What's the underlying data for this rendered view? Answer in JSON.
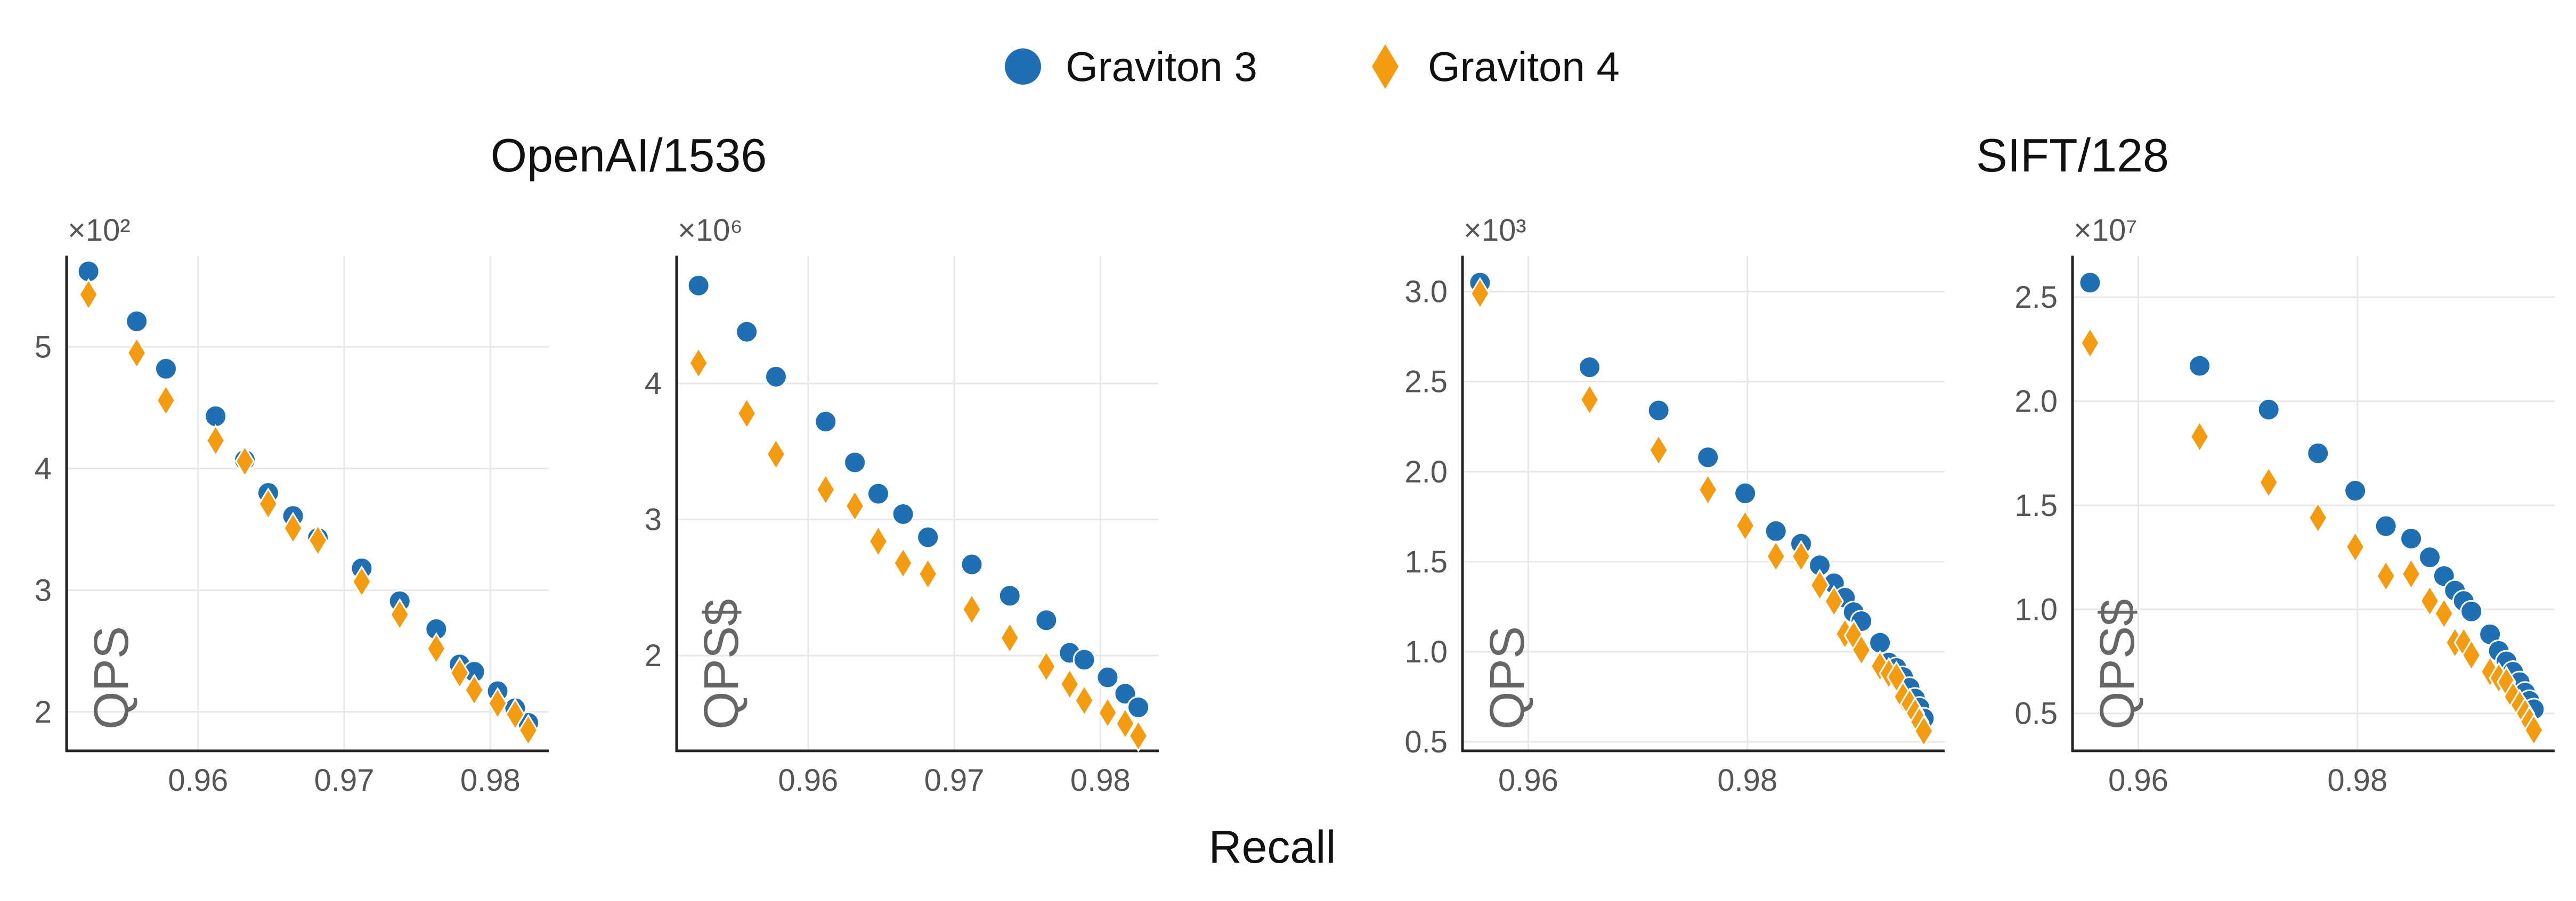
{
  "colors": {
    "graviton3": "#1f6fb2",
    "graviton4": "#f39c12",
    "grid": "#e8e8e8",
    "axis": "#222222"
  },
  "legend": {
    "position": "top-center",
    "items": [
      {
        "label": "Graviton 3",
        "marker": "circle",
        "color": "#1f6fb2"
      },
      {
        "label": "Graviton 4",
        "marker": "diamond",
        "color": "#f39c12"
      }
    ]
  },
  "group_titles": [
    "OpenAI/1536",
    "SIFT/128"
  ],
  "xlabel": "Recall",
  "chart_data": [
    {
      "type": "scatter",
      "group": "OpenAI/1536",
      "ylabel": "QPS",
      "multiplier": "×10²",
      "xlim": [
        0.951,
        0.984
      ],
      "ylim": [
        1.68,
        5.75
      ],
      "xticks": [
        0.96,
        0.97,
        0.98
      ],
      "xtick_labels": [
        "0.96",
        "0.97",
        "0.98"
      ],
      "yticks": [
        2,
        3,
        4,
        5
      ],
      "ytick_labels": [
        "2",
        "3",
        "4",
        "5"
      ],
      "grid": true,
      "series": [
        {
          "name": "Graviton 3",
          "marker": "circle",
          "x": [
            0.9525,
            0.9558,
            0.9578,
            0.9612,
            0.9632,
            0.9648,
            0.9665,
            0.9682,
            0.9712,
            0.9738,
            0.9763,
            0.9779,
            0.9789,
            0.9805,
            0.9817,
            0.9826
          ],
          "y": [
            5.62,
            5.21,
            4.82,
            4.43,
            4.07,
            3.8,
            3.61,
            3.43,
            3.18,
            2.91,
            2.68,
            2.39,
            2.33,
            2.17,
            2.03,
            1.91
          ]
        },
        {
          "name": "Graviton 4",
          "marker": "diamond",
          "x": [
            0.9525,
            0.9558,
            0.9578,
            0.9612,
            0.9632,
            0.9648,
            0.9665,
            0.9682,
            0.9712,
            0.9738,
            0.9763,
            0.9779,
            0.9789,
            0.9805,
            0.9817,
            0.9826
          ],
          "y": [
            5.43,
            4.95,
            4.56,
            4.23,
            4.06,
            3.71,
            3.51,
            3.41,
            3.07,
            2.8,
            2.52,
            2.32,
            2.18,
            2.07,
            1.98,
            1.85
          ]
        }
      ]
    },
    {
      "type": "scatter",
      "group": "OpenAI/1536",
      "ylabel": "QPS$",
      "multiplier": "×10⁶",
      "xlim": [
        0.951,
        0.984
      ],
      "ylim": [
        1.3,
        4.94
      ],
      "xticks": [
        0.96,
        0.97,
        0.98
      ],
      "xtick_labels": [
        "0.96",
        "0.97",
        "0.98"
      ],
      "yticks": [
        2,
        3,
        4
      ],
      "ytick_labels": [
        "2",
        "3",
        "4"
      ],
      "grid": true,
      "series": [
        {
          "name": "Graviton 3",
          "marker": "circle",
          "x": [
            0.9525,
            0.9558,
            0.9578,
            0.9612,
            0.9632,
            0.9648,
            0.9665,
            0.9682,
            0.9712,
            0.9738,
            0.9763,
            0.9779,
            0.9789,
            0.9805,
            0.9817,
            0.9826
          ],
          "y": [
            4.72,
            4.38,
            4.05,
            3.72,
            3.42,
            3.19,
            3.04,
            2.87,
            2.67,
            2.44,
            2.26,
            2.02,
            1.97,
            1.84,
            1.72,
            1.62
          ]
        },
        {
          "name": "Graviton 4",
          "marker": "diamond",
          "x": [
            0.9525,
            0.9558,
            0.9578,
            0.9612,
            0.9632,
            0.9648,
            0.9665,
            0.9682,
            0.9712,
            0.9738,
            0.9763,
            0.9779,
            0.9789,
            0.9805,
            0.9817,
            0.9826
          ],
          "y": [
            4.15,
            3.78,
            3.48,
            3.22,
            3.1,
            2.84,
            2.68,
            2.6,
            2.34,
            2.13,
            1.92,
            1.79,
            1.67,
            1.58,
            1.5,
            1.41
          ]
        }
      ]
    },
    {
      "type": "scatter",
      "group": "SIFT/128",
      "ylabel": "QPS",
      "multiplier": "×10³",
      "xlim": [
        0.954,
        0.998
      ],
      "ylim": [
        0.45,
        3.2
      ],
      "xticks": [
        0.96,
        0.98
      ],
      "xtick_labels": [
        "0.96",
        "0.98"
      ],
      "yticks": [
        0.5,
        1.0,
        1.5,
        2.0,
        2.5,
        3.0
      ],
      "ytick_labels": [
        "0.5",
        "1.0",
        "1.5",
        "2.0",
        "2.5",
        "3.0"
      ],
      "grid": true,
      "series": [
        {
          "name": "Graviton 3",
          "marker": "circle",
          "x": [
            0.9556,
            0.9656,
            0.9719,
            0.9764,
            0.9798,
            0.9826,
            0.9849,
            0.9866,
            0.9879,
            0.9889,
            0.9897,
            0.9904,
            0.9921,
            0.9929,
            0.9936,
            0.9942,
            0.9948,
            0.9953,
            0.9957,
            0.9961
          ],
          "y": [
            3.05,
            2.58,
            2.34,
            2.08,
            1.88,
            1.67,
            1.6,
            1.48,
            1.38,
            1.3,
            1.22,
            1.17,
            1.05,
            0.94,
            0.91,
            0.86,
            0.8,
            0.74,
            0.69,
            0.63
          ]
        },
        {
          "name": "Graviton 4",
          "marker": "diamond",
          "x": [
            0.9556,
            0.9656,
            0.9719,
            0.9764,
            0.9798,
            0.9826,
            0.9849,
            0.9866,
            0.9879,
            0.9889,
            0.9897,
            0.9904,
            0.9921,
            0.9929,
            0.9936,
            0.9942,
            0.9948,
            0.9953,
            0.9957,
            0.9961
          ],
          "y": [
            2.99,
            2.4,
            2.12,
            1.9,
            1.7,
            1.53,
            1.53,
            1.37,
            1.28,
            1.1,
            1.09,
            1.01,
            0.92,
            0.88,
            0.86,
            0.75,
            0.71,
            0.66,
            0.61,
            0.56
          ]
        }
      ]
    },
    {
      "type": "scatter",
      "group": "SIFT/128",
      "ylabel": "QPS$",
      "multiplier": "×10⁷",
      "xlim": [
        0.954,
        0.998
      ],
      "ylim": [
        0.32,
        2.7
      ],
      "xticks": [
        0.96,
        0.98
      ],
      "xtick_labels": [
        "0.96",
        "0.98"
      ],
      "yticks": [
        0.5,
        1.0,
        1.5,
        2.0,
        2.5
      ],
      "ytick_labels": [
        "0.5",
        "1.0",
        "1.5",
        "2.0",
        "2.5"
      ],
      "grid": true,
      "series": [
        {
          "name": "Graviton 3",
          "marker": "circle",
          "x": [
            0.9556,
            0.9656,
            0.9719,
            0.9764,
            0.9798,
            0.9826,
            0.9849,
            0.9866,
            0.9879,
            0.9889,
            0.9897,
            0.9904,
            0.9921,
            0.9929,
            0.9936,
            0.9942,
            0.9948,
            0.9953,
            0.9957,
            0.9961
          ],
          "y": [
            2.57,
            2.17,
            1.96,
            1.75,
            1.57,
            1.4,
            1.34,
            1.25,
            1.16,
            1.09,
            1.04,
            0.99,
            0.88,
            0.8,
            0.75,
            0.7,
            0.65,
            0.6,
            0.56,
            0.52
          ]
        },
        {
          "name": "Graviton 4",
          "marker": "diamond",
          "x": [
            0.9556,
            0.9656,
            0.9719,
            0.9764,
            0.9798,
            0.9826,
            0.9849,
            0.9866,
            0.9879,
            0.9889,
            0.9897,
            0.9904,
            0.9921,
            0.9929,
            0.9936,
            0.9942,
            0.9948,
            0.9953,
            0.9957,
            0.9961
          ],
          "y": [
            2.28,
            1.83,
            1.61,
            1.44,
            1.3,
            1.16,
            1.17,
            1.04,
            0.98,
            0.84,
            0.84,
            0.78,
            0.7,
            0.67,
            0.65,
            0.58,
            0.54,
            0.5,
            0.46,
            0.42
          ]
        }
      ]
    }
  ]
}
